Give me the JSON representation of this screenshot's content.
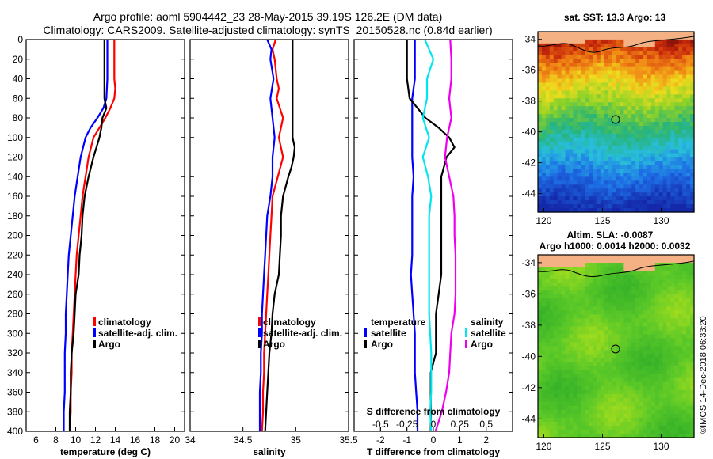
{
  "header": {
    "line1": "Argo profile: aoml 5904442_23 28-May-2015 39.19S 126.2E (DM data)",
    "line2": "Climatology: CARS2009. Satellite-adjusted climatology: synTS_20150528.nc (0.84d earlier)"
  },
  "watermark": "©IMOS 14-Dec-2018 06:33:20",
  "colors": {
    "climatology": "#ff0000",
    "satellite": "#0000ff",
    "argo": "#000000",
    "s_satellite": "#00e5ee",
    "s_argo": "#ee00ee"
  },
  "chart_data": [
    {
      "type": "line",
      "id": "temperature",
      "xlabel": "temperature (deg C)",
      "ylabel": "",
      "xlim": [
        5,
        21
      ],
      "ylim": [
        400,
        0
      ],
      "xticks": [
        "6",
        "8",
        "10",
        "12",
        "14",
        "16",
        "18",
        "20"
      ],
      "yticks": [
        "0",
        "20",
        "40",
        "60",
        "80",
        "100",
        "120",
        "140",
        "160",
        "180",
        "200",
        "220",
        "240",
        "260",
        "280",
        "300",
        "320",
        "340",
        "360",
        "380",
        "400"
      ],
      "legend": [
        "climatology",
        "satellite-adj. clim.",
        "Argo"
      ],
      "series": [
        {
          "name": "climatology",
          "color": "#ff0000",
          "depth": [
            0,
            20,
            40,
            50,
            60,
            70,
            80,
            90,
            100,
            120,
            140,
            160,
            180,
            200,
            220,
            240,
            260,
            280,
            300,
            320,
            340,
            360,
            380,
            400
          ],
          "values": [
            13.9,
            13.9,
            13.9,
            14.0,
            13.9,
            13.5,
            13.0,
            12.4,
            11.8,
            11.3,
            11.0,
            10.7,
            10.5,
            10.3,
            10.1,
            10.0,
            9.9,
            9.8,
            9.7,
            9.6,
            9.6,
            9.5,
            9.5,
            9.4
          ]
        },
        {
          "name": "satellite-adj. clim.",
          "color": "#0000ff",
          "depth": [
            0,
            20,
            40,
            60,
            70,
            80,
            90,
            100,
            120,
            140,
            160,
            180,
            200,
            220,
            240,
            260,
            280,
            300,
            320,
            340,
            360,
            380,
            400
          ],
          "values": [
            13.2,
            13.2,
            13.2,
            13.1,
            12.8,
            12.2,
            11.5,
            11.0,
            10.5,
            10.2,
            9.9,
            9.7,
            9.5,
            9.3,
            9.2,
            9.1,
            9.0,
            9.0,
            8.9,
            8.9,
            8.9,
            8.8,
            8.8
          ]
        },
        {
          "name": "Argo",
          "color": "#000000",
          "depth": [
            0,
            20,
            40,
            60,
            70,
            80,
            90,
            100,
            110,
            120,
            140,
            160,
            180,
            200,
            220,
            240,
            260,
            280,
            300,
            320,
            340,
            360,
            380,
            400
          ],
          "values": [
            12.9,
            12.9,
            12.9,
            12.9,
            13.1,
            12.7,
            12.6,
            12.4,
            12.1,
            11.8,
            11.3,
            10.9,
            10.7,
            10.6,
            10.4,
            10.3,
            10.0,
            9.9,
            9.8,
            9.6,
            9.5,
            9.5,
            9.4,
            9.4
          ]
        }
      ]
    },
    {
      "type": "line",
      "id": "salinity",
      "xlabel": "salinity",
      "ylabel": "",
      "xlim": [
        34,
        35.5
      ],
      "ylim": [
        400,
        0
      ],
      "xticks": [
        "34",
        "34.5",
        "35",
        "35.5"
      ],
      "legend": [
        "climatology",
        "satellite-adj. clim.",
        "Argo"
      ],
      "series": [
        {
          "name": "climatology",
          "color": "#ff0000",
          "depth": [
            0,
            10,
            20,
            40,
            50,
            60,
            80,
            100,
            120,
            140,
            160,
            180,
            200,
            220,
            240,
            260,
            280,
            300,
            320,
            340,
            360,
            380,
            400
          ],
          "values": [
            34.81,
            34.78,
            34.8,
            34.82,
            34.84,
            34.82,
            34.88,
            34.84,
            34.88,
            34.83,
            34.78,
            34.77,
            34.76,
            34.75,
            34.74,
            34.73,
            34.72,
            34.71,
            34.7,
            34.7,
            34.69,
            34.69,
            34.68
          ]
        },
        {
          "name": "satellite-adj. clim.",
          "color": "#0000ff",
          "depth": [
            0,
            10,
            20,
            40,
            60,
            80,
            100,
            120,
            140,
            160,
            180,
            200,
            220,
            240,
            260,
            280,
            300,
            320,
            340,
            360,
            380,
            400
          ],
          "values": [
            34.73,
            34.77,
            34.76,
            34.79,
            34.76,
            34.78,
            34.8,
            34.78,
            34.78,
            34.76,
            34.73,
            34.72,
            34.71,
            34.7,
            34.69,
            34.68,
            34.68,
            34.67,
            34.67,
            34.66,
            34.66,
            34.66
          ]
        },
        {
          "name": "Argo",
          "color": "#000000",
          "depth": [
            0,
            20,
            40,
            60,
            80,
            100,
            110,
            120,
            130,
            140,
            160,
            180,
            200,
            220,
            240,
            260,
            280,
            300,
            320,
            340,
            360,
            380,
            400
          ],
          "values": [
            34.97,
            34.97,
            34.97,
            34.97,
            34.97,
            34.97,
            34.99,
            34.98,
            34.96,
            34.93,
            34.88,
            34.86,
            34.86,
            34.85,
            34.84,
            34.8,
            34.78,
            34.77,
            34.75,
            34.74,
            34.73,
            34.72,
            34.71
          ]
        }
      ]
    },
    {
      "type": "line",
      "id": "differences",
      "xlabel": "T difference from climatology",
      "xlabel_top": "S difference from climatology",
      "xlim": [
        -3,
        3
      ],
      "ylim": [
        400,
        0
      ],
      "xticks": [
        "-2",
        "-1",
        "0",
        "1",
        "2"
      ],
      "xticks_s": [
        "-0.5",
        "-0.25",
        "0",
        "0.25",
        "0.5"
      ],
      "legend_temperature": {
        "title": "temperature",
        "items": [
          "satellite",
          "Argo"
        ]
      },
      "legend_salinity": {
        "title": "salinity",
        "items": [
          "satellite",
          "Argo"
        ]
      },
      "series": [
        {
          "name": "temperature satellite",
          "color": "#0000ff",
          "depth": [
            0,
            20,
            40,
            60,
            80,
            100,
            120,
            140,
            160,
            180,
            200,
            220,
            240,
            260,
            280,
            300,
            320,
            340,
            360,
            380,
            400
          ],
          "values": [
            -0.7,
            -0.7,
            -0.7,
            -0.8,
            -0.8,
            -0.8,
            -0.8,
            -0.75,
            -0.8,
            -0.8,
            -0.8,
            -0.8,
            -0.85,
            -0.8,
            -0.75,
            -0.7,
            -0.7,
            -0.7,
            -0.65,
            -0.6,
            -0.6
          ]
        },
        {
          "name": "temperature Argo",
          "color": "#000000",
          "depth": [
            0,
            20,
            40,
            60,
            70,
            80,
            90,
            100,
            110,
            120,
            140,
            160,
            180,
            200,
            220,
            240,
            260,
            280,
            300,
            320,
            340,
            360,
            380,
            400
          ],
          "values": [
            -1.0,
            -1.0,
            -1.0,
            -0.9,
            -0.6,
            -0.3,
            0.2,
            0.6,
            0.8,
            0.5,
            0.3,
            0.3,
            0.3,
            0.3,
            0.3,
            0.3,
            0.2,
            0.1,
            0.1,
            0.1,
            -0.1,
            -0.1,
            -0.1,
            -0.1
          ]
        },
        {
          "name": "salinity satellite",
          "color": "#00e5ee",
          "depth": [
            0,
            20,
            40,
            60,
            80,
            100,
            120,
            140,
            160,
            180,
            200,
            220,
            240,
            260,
            280,
            300,
            320,
            340,
            360,
            380,
            400
          ],
          "values": [
            -0.08,
            0.0,
            -0.06,
            -0.06,
            -0.1,
            -0.04,
            -0.1,
            -0.05,
            -0.02,
            -0.04,
            -0.04,
            -0.04,
            -0.04,
            -0.04,
            -0.04,
            -0.03,
            -0.02,
            -0.02,
            -0.02,
            -0.03,
            -0.02
          ]
        },
        {
          "name": "salinity Argo",
          "color": "#ee00ee",
          "depth": [
            0,
            20,
            40,
            60,
            80,
            100,
            120,
            140,
            160,
            180,
            200,
            220,
            240,
            260,
            280,
            300,
            320,
            340,
            360,
            380,
            400
          ],
          "values": [
            0.16,
            0.17,
            0.17,
            0.15,
            0.17,
            0.13,
            0.11,
            0.15,
            0.19,
            0.2,
            0.2,
            0.21,
            0.21,
            0.21,
            0.2,
            0.17,
            0.16,
            0.15,
            0.12,
            0.08,
            0.02
          ]
        }
      ]
    },
    {
      "type": "heatmap",
      "id": "sst-map",
      "title": "sat. SST: 13.3 Argo: 13",
      "xlim": [
        119.5,
        132.8
      ],
      "ylim": [
        -45.2,
        -33.5
      ],
      "xticks": [
        "120",
        "125",
        "130"
      ],
      "yticks": [
        "-34",
        "-36",
        "-38",
        "-40",
        "-42",
        "-44"
      ],
      "marker_lon": 126.2,
      "marker_lat": -39.19
    },
    {
      "type": "heatmap",
      "id": "sla-map",
      "title": "Altim. SLA: -0.0087",
      "subtitle": "Argo h1000: 0.0014 h2000: 0.0032",
      "xlim": [
        119.5,
        132.8
      ],
      "ylim": [
        -45.2,
        -33.5
      ],
      "xticks": [
        "120",
        "125",
        "130"
      ],
      "yticks": [
        "-34",
        "-36",
        "-38",
        "-40",
        "-42",
        "-44"
      ],
      "marker_lon": 126.2,
      "marker_lat": -39.19
    }
  ]
}
